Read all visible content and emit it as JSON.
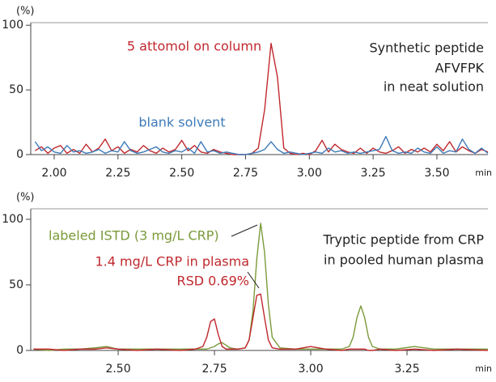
{
  "chart_data": [
    {
      "type": "line",
      "y_label": "(%)",
      "x_label": "min",
      "x": [
        1.925,
        1.95,
        1.975,
        2.0,
        2.025,
        2.05,
        2.075,
        2.1,
        2.125,
        2.15,
        2.175,
        2.2,
        2.225,
        2.25,
        2.275,
        2.3,
        2.325,
        2.35,
        2.375,
        2.4,
        2.425,
        2.45,
        2.475,
        2.5,
        2.525,
        2.55,
        2.575,
        2.6,
        2.625,
        2.65,
        2.675,
        2.7,
        2.725,
        2.75,
        2.775,
        2.8,
        2.825,
        2.85,
        2.875,
        2.9,
        2.925,
        2.95,
        2.975,
        3.0,
        3.025,
        3.05,
        3.075,
        3.1,
        3.125,
        3.15,
        3.175,
        3.2,
        3.225,
        3.25,
        3.275,
        3.3,
        3.325,
        3.35,
        3.375,
        3.4,
        3.425,
        3.45,
        3.475,
        3.5,
        3.525,
        3.55,
        3.575,
        3.6,
        3.625,
        3.65,
        3.675,
        3.7
      ],
      "series": [
        {
          "name": "5 attomol on column",
          "color": "#c0282d",
          "values": [
            3,
            6,
            1,
            5,
            7,
            1,
            4,
            1,
            8,
            2,
            5,
            12,
            3,
            6,
            1,
            4,
            2,
            7,
            3,
            1,
            5,
            2,
            4,
            11,
            3,
            7,
            2,
            1,
            4,
            2,
            1,
            0,
            0,
            0,
            1,
            5,
            35,
            86,
            60,
            5,
            1,
            0,
            1,
            0,
            3,
            11,
            2,
            8,
            4,
            2,
            1,
            5,
            1,
            5,
            2,
            1,
            3,
            6,
            1,
            4,
            2,
            5,
            2,
            8,
            3,
            10,
            2,
            6,
            3,
            1,
            4,
            2
          ]
        },
        {
          "name": "blank solvent",
          "color": "#3d7ab8",
          "values": [
            10,
            3,
            6,
            2,
            1,
            7,
            2,
            3,
            1,
            2,
            4,
            1,
            3,
            2,
            10,
            3,
            1,
            2,
            4,
            6,
            2,
            1,
            3,
            2,
            5,
            1,
            10,
            2,
            3,
            1,
            2,
            1,
            0,
            0,
            1,
            2,
            4,
            10,
            4,
            1,
            2,
            1,
            0,
            1,
            2,
            1,
            5,
            2,
            3,
            1,
            2,
            1,
            2,
            3,
            4,
            14,
            3,
            1,
            2,
            1,
            5,
            2,
            1,
            6,
            1,
            3,
            2,
            12,
            4,
            1,
            5,
            1
          ]
        }
      ],
      "annotations": [
        {
          "text": "Synthetic peptide"
        },
        {
          "text": "AFVFPK"
        },
        {
          "text": "in neat solution"
        }
      ],
      "xlim": [
        1.908,
        3.7
      ],
      "ylim": [
        0,
        102
      ],
      "xticks": [
        {
          "value": 2,
          "label": "2.00"
        },
        2.25,
        {
          "value": 2.5,
          "label": "2.50"
        },
        2.75,
        {
          "value": 3,
          "label": "3.00"
        },
        3.25,
        {
          "value": 3.5,
          "label": "3.50"
        }
      ],
      "yticks": [
        0,
        50,
        100
      ]
    },
    {
      "type": "line",
      "y_label": "(%)",
      "x_label": "min",
      "x": [
        2.28,
        2.32,
        2.36,
        2.4,
        2.44,
        2.47,
        2.5,
        2.55,
        2.6,
        2.66,
        2.7,
        2.72,
        2.73,
        2.74,
        2.75,
        2.76,
        2.77,
        2.78,
        2.79,
        2.81,
        2.83,
        2.84,
        2.85,
        2.86,
        2.87,
        2.88,
        2.89,
        2.9,
        2.92,
        2.96,
        3.0,
        3.04,
        3.08,
        3.1,
        3.11,
        3.12,
        3.13,
        3.14,
        3.15,
        3.16,
        3.18,
        3.22,
        3.27,
        3.32,
        3.38,
        3.46
      ],
      "series": [
        {
          "name": "labeled ISTD (3 mg/L CRP)",
          "color": "#7a9a3a",
          "values": [
            1,
            0,
            1,
            1,
            2,
            3,
            1,
            1,
            1,
            1,
            1,
            1,
            1,
            2,
            3,
            5,
            6,
            4,
            2,
            1,
            2,
            8,
            30,
            70,
            97,
            75,
            35,
            10,
            2,
            1,
            1,
            1,
            1,
            3,
            10,
            25,
            34,
            25,
            10,
            3,
            1,
            1,
            3,
            1,
            1,
            1
          ]
        },
        {
          "name": "1.4 mg/L CRP in plasma",
          "color": "#c0282d",
          "values": [
            1,
            1,
            0,
            1,
            1,
            2,
            1,
            0,
            1,
            0,
            1,
            3,
            10,
            22,
            24,
            12,
            3,
            1,
            1,
            1,
            2,
            8,
            25,
            42,
            43,
            25,
            8,
            2,
            1,
            1,
            3,
            1,
            0,
            1,
            1,
            1,
            1,
            1,
            0,
            0,
            1,
            0,
            1,
            0,
            1,
            0
          ]
        }
      ],
      "annotations": [
        {
          "text": "RSD 0.69%",
          "color": "#c0282d"
        },
        {
          "text": "Tryptic peptide from CRP"
        },
        {
          "text": "in pooled human plasma"
        }
      ],
      "xlim": [
        2.273,
        3.46
      ],
      "ylim": [
        0,
        108
      ],
      "xticks": [
        {
          "value": 2.5,
          "label": "2.50"
        },
        2.75,
        {
          "value": 3,
          "label": "3.00"
        },
        3.25
      ],
      "yticks": [
        0,
        50,
        100
      ]
    }
  ]
}
